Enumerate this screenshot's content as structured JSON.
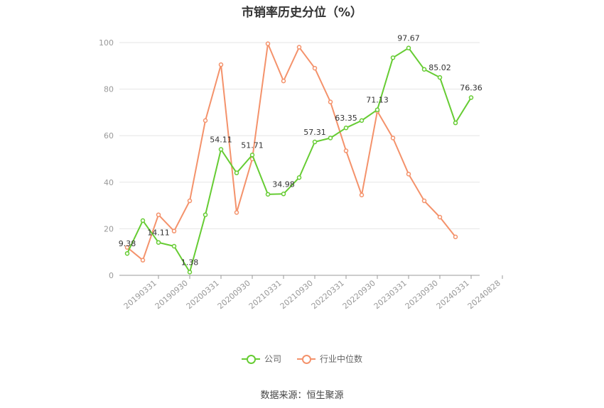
{
  "chart_data": {
    "type": "line",
    "title": "市销率历史分位（%）",
    "x_tick_labels": [
      "20190331",
      "20190930",
      "20200331",
      "20200930",
      "20210331",
      "20210930",
      "20220331",
      "20220930",
      "20230331",
      "20230930",
      "20240331",
      "20240828"
    ],
    "ylim": [
      0,
      100
    ],
    "y_ticks": [
      0,
      20,
      40,
      60,
      80,
      100
    ],
    "grid": true,
    "legend_position": "bottom",
    "series": [
      {
        "name": "公司",
        "color": "#66cc33",
        "values": [
          9.38,
          23.5,
          14.11,
          12.5,
          1.38,
          26.0,
          54.11,
          44.0,
          51.71,
          34.8,
          34.98,
          42.0,
          57.31,
          59.0,
          63.35,
          66.5,
          71.13,
          93.5,
          97.67,
          88.5,
          85.02,
          65.5,
          76.36
        ],
        "labels": [
          "9.38",
          "",
          "14.11",
          "",
          "1.38",
          "",
          "54.11",
          "",
          "51.71",
          "",
          "34.98",
          "",
          "57.31",
          "",
          "63.35",
          "",
          "71.13",
          "",
          "97.67",
          "",
          "85.02",
          "",
          "76.36"
        ]
      },
      {
        "name": "行业中位数",
        "color": "#f4926b",
        "values": [
          12.0,
          6.5,
          26.0,
          19.0,
          32.0,
          66.5,
          90.5,
          27.0,
          50.0,
          99.5,
          83.5,
          98.0,
          89.0,
          74.5,
          53.5,
          34.5,
          70.5,
          59.0,
          43.5,
          32.0,
          25.0,
          16.5
        ]
      }
    ]
  },
  "legend": {
    "company": "公司",
    "industry": "行业中位数"
  },
  "source": "数据来源：恒生聚源"
}
